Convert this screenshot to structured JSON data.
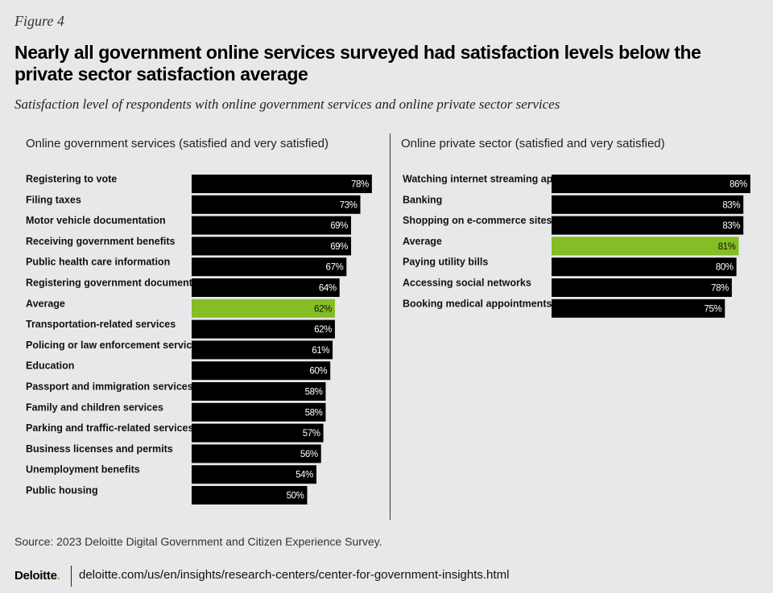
{
  "figure_label": "Figure 4",
  "title": "Nearly all government online services surveyed had satisfaction levels below the private sector satisfaction average",
  "subtitle": "Satisfaction level of respondents with online government services and online private sector services",
  "colors": {
    "bar": "#000000",
    "average": "#86bc25",
    "background": "#e7e8e9"
  },
  "chart_data": [
    {
      "type": "bar",
      "orientation": "horizontal",
      "title": "Online government services (satisfied and very satisfied)",
      "unit": "%",
      "categories": [
        "Registering to vote",
        "Filing taxes",
        "Motor vehicle documentation",
        "Receiving government benefits",
        "Public health care information",
        "Registering government documents",
        "Average",
        "Transportation-related services",
        "Policing or law enforcement services",
        "Education",
        "Passport and immigration services",
        "Family and children services",
        "Parking and traffic-related services",
        "Business licenses and permits",
        "Unemployment benefits",
        "Public housing"
      ],
      "values": [
        78,
        73,
        69,
        69,
        67,
        64,
        62,
        62,
        61,
        60,
        58,
        58,
        57,
        56,
        54,
        50
      ],
      "highlight": "Average"
    },
    {
      "type": "bar",
      "orientation": "horizontal",
      "title": "Online private sector (satisfied and very satisfied)",
      "unit": "%",
      "categories": [
        "Watching internet streaming apps",
        "Banking",
        "Shopping on e-commerce sites",
        "Average",
        "Paying utility bills",
        "Accessing social networks",
        "Booking medical appointments"
      ],
      "values": [
        86,
        83,
        83,
        81,
        80,
        78,
        75
      ],
      "highlight": "Average"
    }
  ],
  "source": "Source: 2023 Deloitte Digital Government and Citizen Experience Survey.",
  "footer": {
    "brand": "Deloitte",
    "brand_dot": ".",
    "url": "deloitte.com/us/en/insights/research-centers/center-for-government-insights.html"
  }
}
